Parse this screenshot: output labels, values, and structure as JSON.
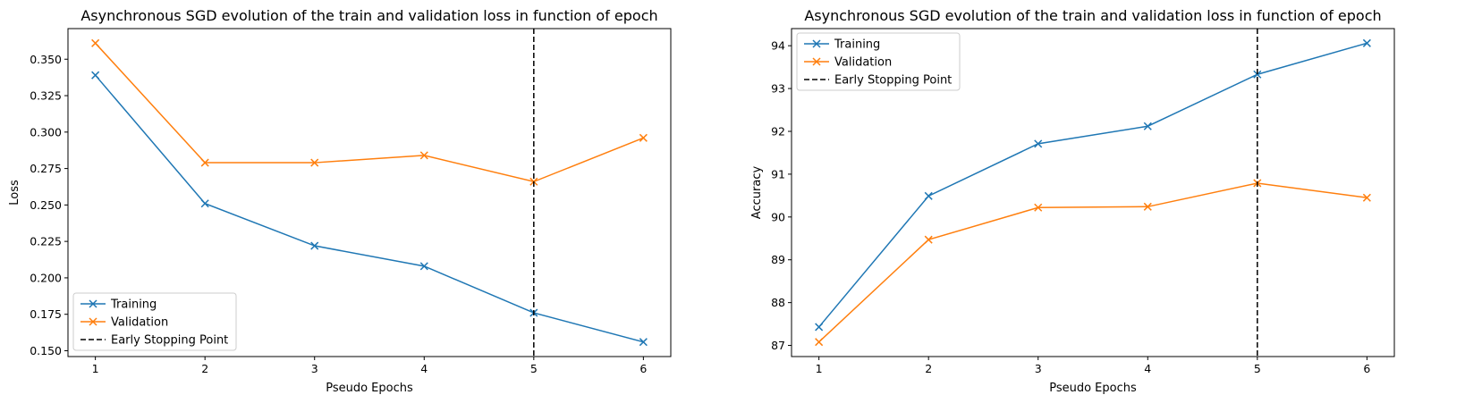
{
  "chart_data": [
    {
      "type": "line",
      "title": "Asynchronous SGD evolution of the train and validation loss in function of epoch",
      "xlabel": "Pseudo Epochs",
      "ylabel": "Loss",
      "x": [
        1,
        2,
        3,
        4,
        5,
        6
      ],
      "xlim": [
        0.75,
        6.25
      ],
      "ylim": [
        0.146,
        0.371
      ],
      "yticks": [
        0.15,
        0.175,
        0.2,
        0.225,
        0.25,
        0.275,
        0.3,
        0.325,
        0.35
      ],
      "ytick_labels": [
        "0.150",
        "0.175",
        "0.200",
        "0.225",
        "0.250",
        "0.275",
        "0.300",
        "0.325",
        "0.350"
      ],
      "series": [
        {
          "name": "Training",
          "color": "#1f77b4",
          "marker": "x",
          "values": [
            0.339,
            0.251,
            0.222,
            0.208,
            0.176,
            0.156
          ]
        },
        {
          "name": "Validation",
          "color": "#ff7f0e",
          "marker": "x",
          "values": [
            0.361,
            0.279,
            0.279,
            0.284,
            0.266,
            0.296
          ]
        }
      ],
      "vline": {
        "name": "Early Stopping Point",
        "x": 5,
        "color": "#000000",
        "style": "dashed"
      },
      "legend_position": "lower-left",
      "grid": false
    },
    {
      "type": "line",
      "title": "Asynchronous SGD evolution of the train and validation loss in function of epoch",
      "xlabel": "Pseudo Epochs",
      "ylabel": "Accuracy",
      "x": [
        1,
        2,
        3,
        4,
        5,
        6
      ],
      "xlim": [
        0.75,
        6.25
      ],
      "ylim": [
        86.74,
        94.4
      ],
      "yticks": [
        87,
        88,
        89,
        90,
        91,
        92,
        93,
        94
      ],
      "ytick_labels": [
        "87",
        "88",
        "89",
        "90",
        "91",
        "92",
        "93",
        "94"
      ],
      "series": [
        {
          "name": "Training",
          "color": "#1f77b4",
          "marker": "x",
          "values": [
            87.43,
            90.49,
            91.71,
            92.12,
            93.33,
            94.06
          ]
        },
        {
          "name": "Validation",
          "color": "#ff7f0e",
          "marker": "x",
          "values": [
            87.08,
            89.47,
            90.22,
            90.24,
            90.79,
            90.45
          ]
        }
      ],
      "vline": {
        "name": "Early Stopping Point",
        "x": 5,
        "color": "#000000",
        "style": "dashed"
      },
      "legend_position": "upper-left",
      "grid": false
    }
  ]
}
